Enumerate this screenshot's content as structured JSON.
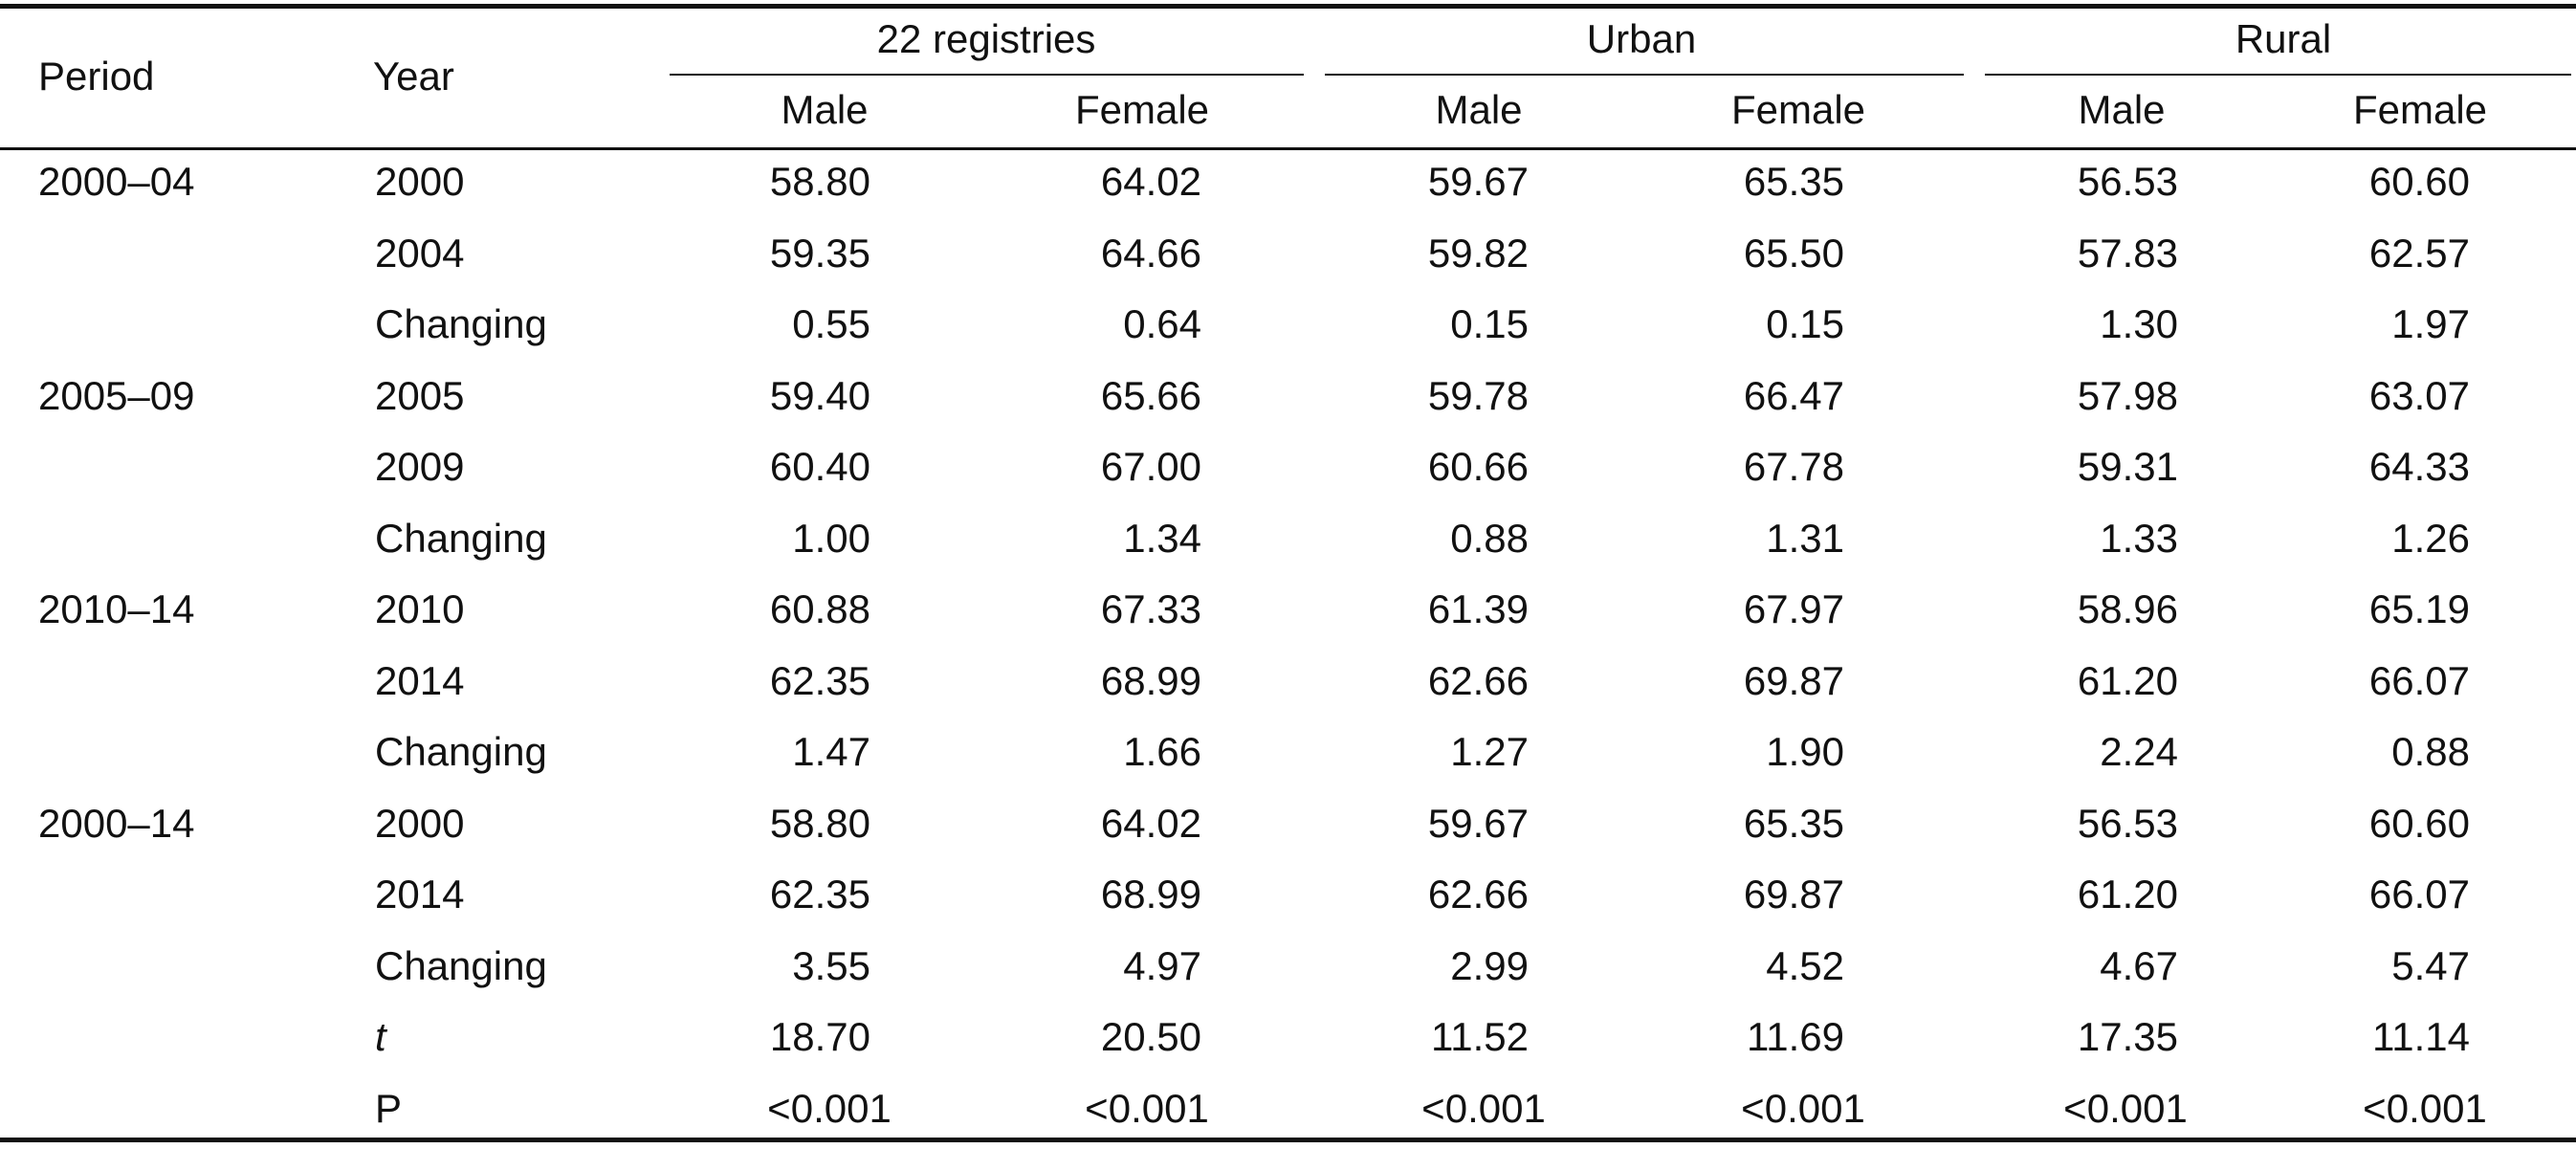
{
  "headers": {
    "period": "Period",
    "year": "Year",
    "groups": [
      "22 registries",
      "Urban",
      "Rural"
    ],
    "sexes": [
      "Male",
      "Female",
      "Male",
      "Female",
      "Male",
      "Female"
    ]
  },
  "rows": [
    {
      "period": "2000–04",
      "year": "2000",
      "values": [
        "58.80",
        "64.02",
        "59.67",
        "65.35",
        "56.53",
        "60.60"
      ]
    },
    {
      "period": "",
      "year": "2004",
      "values": [
        "59.35",
        "64.66",
        "59.82",
        "65.50",
        "57.83",
        "62.57"
      ]
    },
    {
      "period": "",
      "year": "Changing",
      "values": [
        "0.55",
        "0.64",
        "0.15",
        "0.15",
        "1.30",
        "1.97"
      ]
    },
    {
      "period": "2005–09",
      "year": "2005",
      "values": [
        "59.40",
        "65.66",
        "59.78",
        "66.47",
        "57.98",
        "63.07"
      ]
    },
    {
      "period": "",
      "year": "2009",
      "values": [
        "60.40",
        "67.00",
        "60.66",
        "67.78",
        "59.31",
        "64.33"
      ]
    },
    {
      "period": "",
      "year": "Changing",
      "values": [
        "1.00",
        "1.34",
        "0.88",
        "1.31",
        "1.33",
        "1.26"
      ]
    },
    {
      "period": "2010–14",
      "year": "2010",
      "values": [
        "60.88",
        "67.33",
        "61.39",
        "67.97",
        "58.96",
        "65.19"
      ]
    },
    {
      "period": "",
      "year": "2014",
      "values": [
        "62.35",
        "68.99",
        "62.66",
        "69.87",
        "61.20",
        "66.07"
      ]
    },
    {
      "period": "",
      "year": "Changing",
      "values": [
        "1.47",
        "1.66",
        "1.27",
        "1.90",
        "2.24",
        "0.88"
      ]
    },
    {
      "period": "2000–14",
      "year": "2000",
      "values": [
        "58.80",
        "64.02",
        "59.67",
        "65.35",
        "56.53",
        "60.60"
      ]
    },
    {
      "period": "",
      "year": "2014",
      "values": [
        "62.35",
        "68.99",
        "62.66",
        "69.87",
        "61.20",
        "66.07"
      ]
    },
    {
      "period": "",
      "year": "Changing",
      "values": [
        "3.55",
        "4.97",
        "2.99",
        "4.52",
        "4.67",
        "5.47"
      ]
    },
    {
      "period": "",
      "year": "t",
      "year_italic": true,
      "values": [
        "18.70",
        "20.50",
        "11.52",
        "11.69",
        "17.35",
        "11.14"
      ]
    },
    {
      "period": "",
      "year": "P",
      "values": [
        "<0.001",
        "<0.001",
        "<0.001",
        "<0.001",
        "<0.001",
        "<0.001"
      ]
    }
  ]
}
